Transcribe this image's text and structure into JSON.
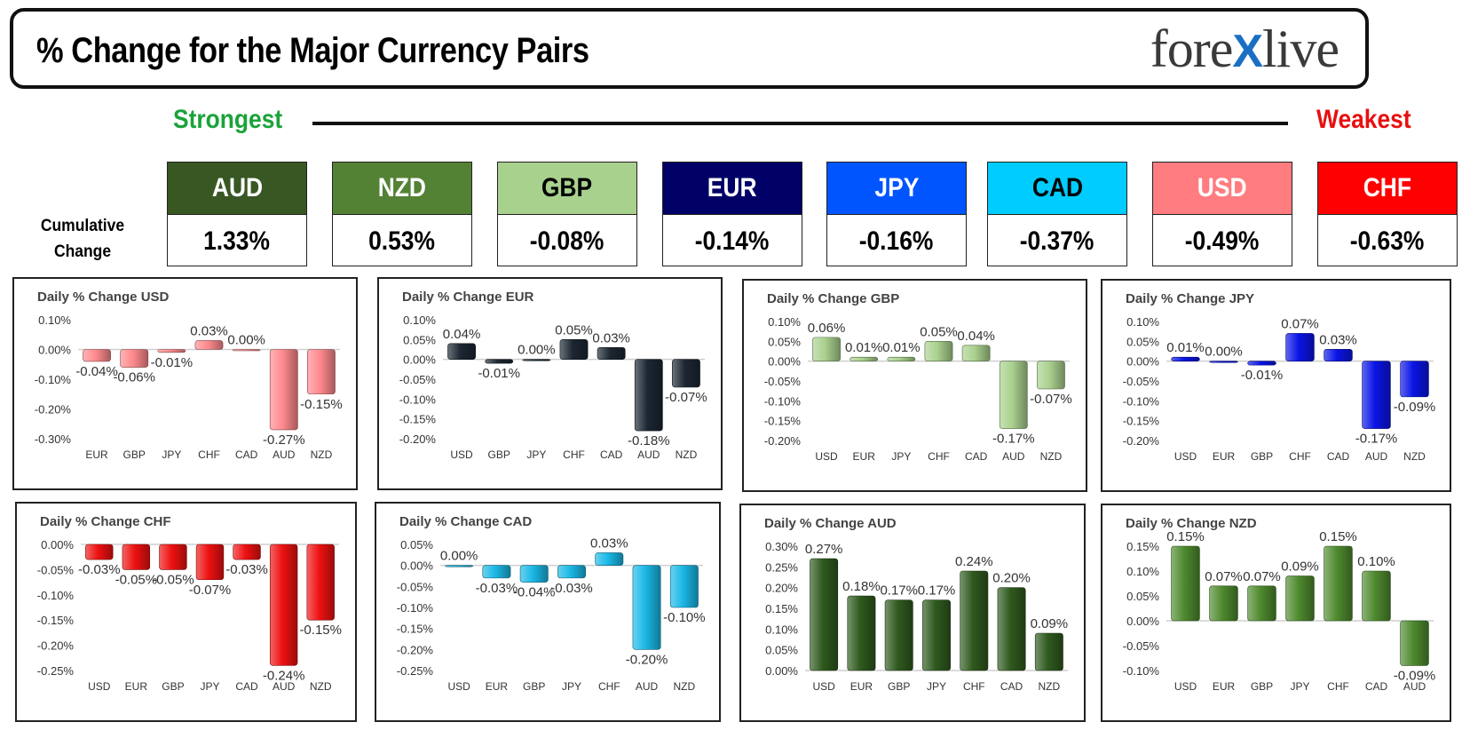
{
  "header": {
    "title": "% Change for the Major Currency Pairs",
    "logo_left": "fore",
    "logo_x": "X",
    "logo_right": "live"
  },
  "ranking": {
    "strongest_label": "Strongest",
    "weakest_label": "Weakest",
    "cumulative_label_line1": "Cumulative",
    "cumulative_label_line2": "Change",
    "currencies": [
      {
        "name": "AUD",
        "value": "1.33%",
        "bg": "#385723",
        "fg": "#ffffff"
      },
      {
        "name": "NZD",
        "value": "0.53%",
        "bg": "#548235",
        "fg": "#ffffff"
      },
      {
        "name": "GBP",
        "value": "-0.08%",
        "bg": "#a9d18e",
        "fg": "#000000"
      },
      {
        "name": "EUR",
        "value": "-0.14%",
        "bg": "#000066",
        "fg": "#ffffff"
      },
      {
        "name": "JPY",
        "value": "-0.16%",
        "bg": "#0055ff",
        "fg": "#ffffff"
      },
      {
        "name": "CAD",
        "value": "-0.37%",
        "bg": "#00ccff",
        "fg": "#000000"
      },
      {
        "name": "USD",
        "value": "-0.49%",
        "bg": "#ff7c80",
        "fg": "#ffffff"
      },
      {
        "name": "CHF",
        "value": "-0.63%",
        "bg": "#ff0000",
        "fg": "#ffffff"
      }
    ]
  },
  "chart_data": [
    {
      "type": "bar",
      "title": "Daily % Change USD",
      "color": "#ff8a8e",
      "categories": [
        "EUR",
        "GBP",
        "JPY",
        "CHF",
        "CAD",
        "AUD",
        "NZD"
      ],
      "values": [
        -0.04,
        -0.06,
        -0.01,
        0.03,
        0.0,
        -0.27,
        -0.15
      ],
      "labels": [
        "-0.04%",
        "-0.06%",
        "-0.01%",
        "0.03%",
        "0.00%",
        "-0.27%",
        "-0.15%"
      ],
      "ylim": [
        -0.3,
        0.1
      ],
      "yticks": [
        "0.10%",
        "0.00%",
        "-0.10%",
        "-0.20%",
        "-0.30%"
      ],
      "tick_values": [
        0.1,
        0.0,
        -0.1,
        -0.2,
        -0.3
      ]
    },
    {
      "type": "bar",
      "title": "Daily % Change EUR",
      "color": "#1c2733",
      "categories": [
        "USD",
        "GBP",
        "JPY",
        "CHF",
        "CAD",
        "AUD",
        "NZD"
      ],
      "values": [
        0.04,
        -0.01,
        0.0,
        0.05,
        0.03,
        -0.18,
        -0.07
      ],
      "labels": [
        "0.04%",
        "-0.01%",
        "0.00%",
        "0.05%",
        "0.03%",
        "-0.18%",
        "-0.07%"
      ],
      "ylim": [
        -0.2,
        0.1
      ],
      "yticks": [
        "0.10%",
        "0.05%",
        "0.00%",
        "-0.05%",
        "-0.10%",
        "-0.15%",
        "-0.20%"
      ],
      "tick_values": [
        0.1,
        0.05,
        0.0,
        -0.05,
        -0.1,
        -0.15,
        -0.2
      ]
    },
    {
      "type": "bar",
      "title": "Daily % Change GBP",
      "color": "#a9d18e",
      "categories": [
        "USD",
        "EUR",
        "JPY",
        "CHF",
        "CAD",
        "AUD",
        "NZD"
      ],
      "values": [
        0.06,
        0.01,
        0.01,
        0.05,
        0.04,
        -0.17,
        -0.07
      ],
      "labels": [
        "0.06%",
        "0.01%",
        "0.01%",
        "0.05%",
        "0.04%",
        "-0.17%",
        "-0.07%"
      ],
      "ylim": [
        -0.2,
        0.1
      ],
      "yticks": [
        "0.10%",
        "0.05%",
        "0.00%",
        "-0.05%",
        "-0.10%",
        "-0.15%",
        "-0.20%"
      ],
      "tick_values": [
        0.1,
        0.05,
        0.0,
        -0.05,
        -0.1,
        -0.15,
        -0.2
      ]
    },
    {
      "type": "bar",
      "title": "Daily % Change JPY",
      "color": "#0a14e6",
      "categories": [
        "USD",
        "EUR",
        "GBP",
        "CHF",
        "CAD",
        "AUD",
        "NZD"
      ],
      "values": [
        0.01,
        0.0,
        -0.01,
        0.07,
        0.03,
        -0.17,
        -0.09
      ],
      "labels": [
        "0.01%",
        "0.00%",
        "-0.01%",
        "0.07%",
        "0.03%",
        "-0.17%",
        "-0.09%"
      ],
      "ylim": [
        -0.2,
        0.1
      ],
      "yticks": [
        "0.10%",
        "0.05%",
        "0.00%",
        "-0.05%",
        "-0.10%",
        "-0.15%",
        "-0.20%"
      ],
      "tick_values": [
        0.1,
        0.05,
        0.0,
        -0.05,
        -0.1,
        -0.15,
        -0.2
      ]
    },
    {
      "type": "bar",
      "title": "Daily % Change CHF",
      "color": "#ee1111",
      "categories": [
        "USD",
        "EUR",
        "GBP",
        "JPY",
        "CAD",
        "AUD",
        "NZD"
      ],
      "values": [
        -0.03,
        -0.05,
        -0.05,
        -0.07,
        -0.03,
        -0.24,
        -0.15
      ],
      "labels": [
        "-0.03%",
        "-0.05%",
        "-0.05%",
        "-0.07%",
        "-0.03%",
        "-0.24%",
        "-0.15%"
      ],
      "ylim": [
        -0.25,
        0.0
      ],
      "yticks": [
        "0.00%",
        "-0.05%",
        "-0.10%",
        "-0.15%",
        "-0.20%",
        "-0.25%"
      ],
      "tick_values": [
        0.0,
        -0.05,
        -0.1,
        -0.15,
        -0.2,
        -0.25
      ]
    },
    {
      "type": "bar",
      "title": "Daily % Change CAD",
      "color": "#1ab8e6",
      "categories": [
        "USD",
        "EUR",
        "GBP",
        "JPY",
        "CHF",
        "AUD",
        "NZD"
      ],
      "values": [
        0.0,
        -0.03,
        -0.04,
        -0.03,
        0.03,
        -0.2,
        -0.1
      ],
      "labels": [
        "0.00%",
        "-0.03%",
        "-0.04%",
        "-0.03%",
        "0.03%",
        "-0.20%",
        "-0.10%"
      ],
      "ylim": [
        -0.25,
        0.05
      ],
      "yticks": [
        "0.05%",
        "0.00%",
        "-0.05%",
        "-0.10%",
        "-0.15%",
        "-0.20%",
        "-0.25%"
      ],
      "tick_values": [
        0.05,
        0.0,
        -0.05,
        -0.1,
        -0.15,
        -0.2,
        -0.25
      ]
    },
    {
      "type": "bar",
      "title": "Daily % Change AUD",
      "color": "#2f5a1e",
      "categories": [
        "USD",
        "EUR",
        "GBP",
        "JPY",
        "CHF",
        "CAD",
        "NZD"
      ],
      "values": [
        0.27,
        0.18,
        0.17,
        0.17,
        0.24,
        0.2,
        0.09
      ],
      "labels": [
        "0.27%",
        "0.18%",
        "0.17%",
        "0.17%",
        "0.24%",
        "0.20%",
        "0.09%"
      ],
      "ylim": [
        0.0,
        0.3
      ],
      "yticks": [
        "0.30%",
        "0.25%",
        "0.20%",
        "0.15%",
        "0.10%",
        "0.05%",
        "0.00%"
      ],
      "tick_values": [
        0.3,
        0.25,
        0.2,
        0.15,
        0.1,
        0.05,
        0.0
      ]
    },
    {
      "type": "bar",
      "title": "Daily % Change NZD",
      "color": "#4e8a2e",
      "categories": [
        "USD",
        "EUR",
        "GBP",
        "JPY",
        "CHF",
        "CAD",
        "AUD"
      ],
      "values": [
        0.15,
        0.07,
        0.07,
        0.09,
        0.15,
        0.1,
        -0.09
      ],
      "labels": [
        "0.15%",
        "0.07%",
        "0.07%",
        "0.09%",
        "0.15%",
        "0.10%",
        "-0.09%"
      ],
      "ylim": [
        -0.1,
        0.15
      ],
      "yticks": [
        "0.15%",
        "0.10%",
        "0.05%",
        "0.00%",
        "-0.05%",
        "-0.10%"
      ],
      "tick_values": [
        0.15,
        0.1,
        0.05,
        0.0,
        -0.05,
        -0.1
      ]
    }
  ]
}
